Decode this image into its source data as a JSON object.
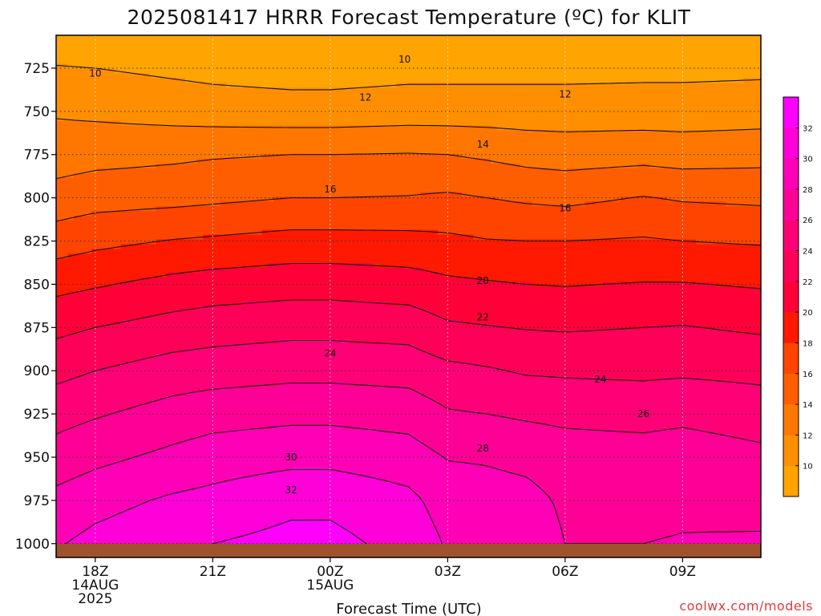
{
  "chart_data": {
    "type": "heatmap",
    "title": "2025081417 HRRR Forecast Temperature (ºC) for KLIT",
    "xlabel": "Forecast Time (UTC)",
    "ylabel": "",
    "credit": "coolwx.com/models",
    "x_ticks": [
      {
        "hour": 1,
        "lines": [
          "18Z",
          "14AUG",
          "2025"
        ]
      },
      {
        "hour": 4,
        "lines": [
          "21Z"
        ]
      },
      {
        "hour": 7,
        "lines": [
          "00Z",
          "15AUG"
        ]
      },
      {
        "hour": 10,
        "lines": [
          "03Z"
        ]
      },
      {
        "hour": 13,
        "lines": [
          "06Z"
        ]
      },
      {
        "hour": 16,
        "lines": [
          "09Z"
        ]
      }
    ],
    "xlim": [
      0,
      18
    ],
    "y_ticks": [
      725,
      750,
      775,
      800,
      825,
      850,
      875,
      900,
      925,
      950,
      975,
      1000
    ],
    "ylim_hpa": [
      706,
      1008
    ],
    "grid": "dotted",
    "colorbar": {
      "levels": [
        10,
        12,
        14,
        16,
        18,
        20,
        22,
        24,
        26,
        28,
        30,
        32
      ],
      "colors": [
        "#ffa400",
        "#ff8f00",
        "#ff7700",
        "#ff5e00",
        "#ff4400",
        "#ff1900",
        "#ff0038",
        "#ff0058",
        "#ff0076",
        "#ff0096",
        "#ff00b6",
        "#ff00d8",
        "#ff00ff"
      ],
      "placement": "right"
    },
    "ground_color": "#a0522d",
    "temperature_at_hour": {
      "hours": [
        0,
        1,
        3,
        4,
        6,
        7,
        9,
        10,
        11,
        12,
        13,
        15,
        16,
        18
      ],
      "p_levels": [
        700,
        725,
        750,
        775,
        800,
        825,
        850,
        875,
        900,
        925,
        950,
        975,
        1000,
        1010
      ],
      "profiles": [
        [
          8.6,
          10.1,
          11.8,
          13.0,
          14.8,
          17.0,
          19.4,
          21.5,
          23.4,
          25.3,
          26.8,
          28.6,
          29.8,
          30.3
        ],
        [
          8.4,
          10.0,
          11.6,
          13.3,
          15.2,
          17.5,
          19.8,
          22.0,
          24.0,
          25.8,
          27.5,
          29.3,
          30.6,
          31.1
        ],
        [
          8.2,
          9.6,
          11.2,
          13.6,
          15.4,
          18.1,
          20.6,
          22.8,
          24.9,
          26.8,
          28.5,
          30.3,
          31.6,
          32.1
        ],
        [
          8.0,
          9.4,
          11.0,
          13.8,
          15.6,
          18.3,
          20.9,
          23.1,
          25.1,
          27.2,
          29.0,
          30.6,
          32.0,
          32.5
        ],
        [
          7.9,
          9.2,
          10.8,
          14.0,
          16.0,
          18.7,
          21.2,
          23.4,
          25.4,
          27.5,
          29.4,
          31.5,
          32.6,
          33.0
        ],
        [
          7.9,
          9.2,
          10.8,
          14.0,
          16.0,
          18.7,
          21.2,
          23.4,
          25.4,
          27.5,
          29.4,
          31.5,
          32.6,
          33.0
        ],
        [
          8.0,
          9.4,
          11.0,
          14.1,
          16.1,
          18.6,
          20.9,
          23.2,
          25.2,
          27.2,
          28.9,
          30.5,
          31.3,
          31.5
        ],
        [
          8.2,
          9.4,
          11.0,
          14.0,
          16.3,
          18.4,
          20.4,
          22.3,
          24.5,
          26.2,
          27.9,
          29.1,
          29.8,
          30.0
        ],
        [
          8.2,
          9.4,
          11.0,
          13.7,
          16.0,
          18.1,
          20.2,
          22.1,
          24.2,
          26.0,
          27.8,
          28.8,
          29.4,
          29.6
        ],
        [
          8.3,
          9.4,
          11.0,
          13.3,
          15.7,
          18.0,
          20.0,
          21.9,
          23.8,
          25.7,
          27.5,
          28.6,
          29.1,
          29.3
        ],
        [
          8.3,
          9.4,
          11.0,
          13.1,
          15.5,
          18.0,
          19.9,
          21.8,
          23.7,
          25.5,
          27.0,
          27.7,
          28.0,
          28.2
        ],
        [
          8.3,
          9.5,
          11.0,
          13.3,
          16.1,
          18.2,
          20.1,
          22.0,
          23.6,
          25.3,
          26.9,
          27.6,
          28.0,
          28.2
        ],
        [
          8.3,
          9.5,
          11.0,
          13.1,
          15.8,
          18.0,
          20.1,
          22.1,
          23.7,
          25.5,
          27.1,
          27.7,
          28.1,
          28.3
        ],
        [
          8.4,
          9.6,
          11.1,
          13.3,
          15.6,
          17.8,
          19.8,
          21.7,
          23.5,
          25.0,
          26.5,
          27.5,
          28.2,
          28.4
        ]
      ]
    },
    "contour_labels": [
      {
        "value": "10",
        "hour": 1.0,
        "hpa": 728
      },
      {
        "value": "10",
        "hour": 8.9,
        "hpa": 720
      },
      {
        "value": "12",
        "hour": 7.9,
        "hpa": 742
      },
      {
        "value": "12",
        "hour": 13.0,
        "hpa": 740
      },
      {
        "value": "14",
        "hour": 10.9,
        "hpa": 769
      },
      {
        "value": "16",
        "hour": 7.0,
        "hpa": 795
      },
      {
        "value": "16",
        "hour": 13.0,
        "hpa": 806
      },
      {
        "value": "20",
        "hour": 10.9,
        "hpa": 848
      },
      {
        "value": "22",
        "hour": 10.9,
        "hpa": 869
      },
      {
        "value": "24",
        "hour": 7.0,
        "hpa": 890
      },
      {
        "value": "24",
        "hour": 13.9,
        "hpa": 905
      },
      {
        "value": "26",
        "hour": 15.0,
        "hpa": 925
      },
      {
        "value": "28",
        "hour": 10.9,
        "hpa": 945
      },
      {
        "value": "30",
        "hour": 6.0,
        "hpa": 950
      },
      {
        "value": "32",
        "hour": 6.0,
        "hpa": 969
      }
    ]
  }
}
